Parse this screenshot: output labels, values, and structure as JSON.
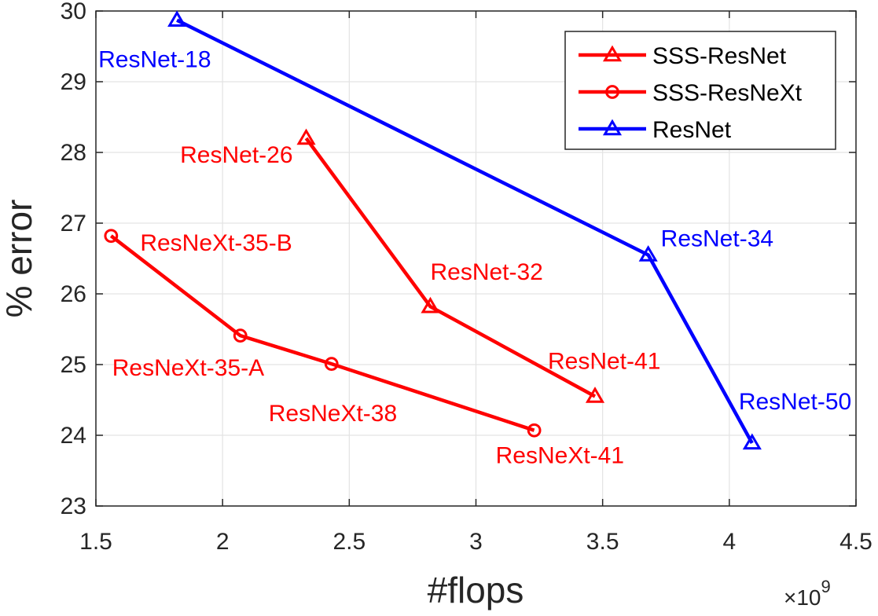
{
  "chart_data": {
    "type": "line",
    "xlabel": "#flops",
    "ylabel": "% error",
    "x_multiplier_label": "×10",
    "x_multiplier_exponent": "9",
    "xlim": [
      1.5,
      4.5
    ],
    "ylim": [
      23,
      30
    ],
    "xticks": [
      "1.5",
      "2",
      "2.5",
      "3",
      "3.5",
      "4",
      "4.5"
    ],
    "yticks": [
      "23",
      "24",
      "25",
      "26",
      "27",
      "28",
      "29",
      "30"
    ],
    "grid": true,
    "legend_position": "top-right",
    "series": [
      {
        "name": "SSS-ResNet",
        "color": "#ff0000",
        "marker": "triangle",
        "points": [
          {
            "x": 2.33,
            "y": 28.2,
            "label": "ResNet-26"
          },
          {
            "x": 2.82,
            "y": 25.82,
            "label": "ResNet-32"
          },
          {
            "x": 3.47,
            "y": 24.55,
            "label": "ResNet-41"
          }
        ]
      },
      {
        "name": "SSS-ResNeXt",
        "color": "#ff0000",
        "marker": "circle",
        "points": [
          {
            "x": 1.56,
            "y": 26.82,
            "label": "ResNeXt-35-B"
          },
          {
            "x": 2.07,
            "y": 25.41,
            "label": "ResNeXt-35-A"
          },
          {
            "x": 2.43,
            "y": 25.01,
            "label": "ResNeXt-38"
          },
          {
            "x": 3.23,
            "y": 24.07,
            "label": "ResNeXt-41"
          }
        ]
      },
      {
        "name": "ResNet",
        "color": "#0000ff",
        "marker": "triangle",
        "points": [
          {
            "x": 1.82,
            "y": 29.87,
            "label": "ResNet-18"
          },
          {
            "x": 3.68,
            "y": 26.55,
            "label": "ResNet-34"
          },
          {
            "x": 4.09,
            "y": 23.89,
            "label": "ResNet-50"
          }
        ]
      }
    ]
  }
}
